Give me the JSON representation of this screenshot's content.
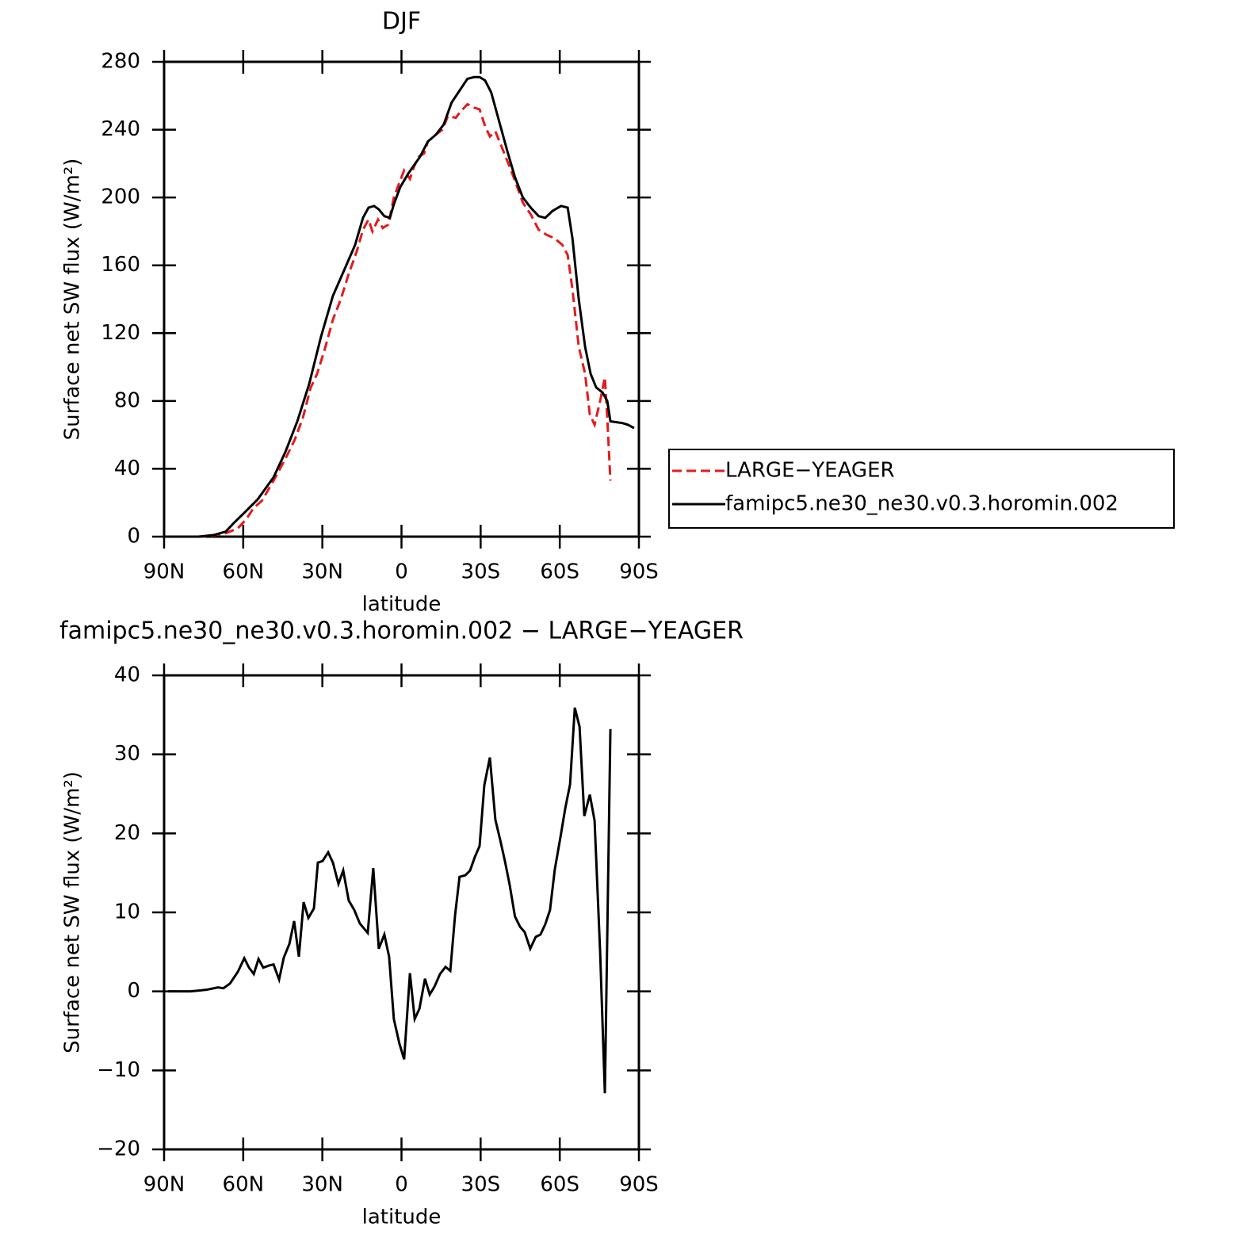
{
  "chart_data": [
    {
      "type": "line",
      "title": "DJF",
      "xlabel": "latitude",
      "ylabel": "Surface net SW flux (W/m²)",
      "xlim": [
        90,
        -90
      ],
      "xticks": [
        {
          "value": 90,
          "label": "90N"
        },
        {
          "value": 60,
          "label": "60N"
        },
        {
          "value": 30,
          "label": "30N"
        },
        0,
        {
          "value": -30,
          "label": "30S"
        },
        {
          "value": -60,
          "label": "60S"
        },
        {
          "value": -90,
          "label": "90S"
        }
      ],
      "ylim": [
        0,
        280
      ],
      "yticks": [
        0,
        40,
        80,
        120,
        160,
        200,
        240,
        280
      ],
      "legend": "outside right",
      "series": [
        {
          "name": "LARGE−YEAGER",
          "color": "#e41a1c",
          "dash": true,
          "x": [
            88.5,
            74,
            66.6,
            62,
            59,
            56,
            53,
            48.5,
            44,
            40.5,
            37.4,
            34.4,
            32,
            29,
            26,
            23,
            20,
            17,
            14.6,
            12.5,
            11,
            8.9,
            7.1,
            5,
            2.9,
            0.5,
            -1,
            -3.2,
            -4.7,
            -6.5,
            -8.6,
            -10,
            -13,
            -15.5,
            -17.6,
            -20.6,
            -22,
            -25,
            -27.5,
            -29.6,
            -31.7,
            -33.5,
            -35.6,
            -40,
            -43,
            -46,
            -49,
            -52,
            -55,
            -58,
            -61,
            -63,
            -64.8,
            -67.2,
            -69.6,
            -71.4,
            -73.2,
            -75.3,
            -77.1,
            -78,
            -79.2
          ],
          "values": [
            0,
            0,
            2,
            5,
            10,
            17,
            21,
            33,
            46,
            57,
            70,
            88,
            96,
            111,
            128,
            140,
            155,
            168,
            181,
            187,
            180,
            187,
            182,
            184,
            200,
            210,
            216,
            211,
            218,
            224,
            226,
            233,
            237,
            240,
            248,
            247,
            250,
            255,
            253,
            252,
            242,
            236,
            239,
            222,
            210,
            197,
            190,
            181,
            178,
            176,
            172,
            166,
            146,
            112,
            96,
            72,
            66,
            80,
            94,
            70,
            33
          ]
        },
        {
          "name": "famipc5.ne30_ne30.v0.3.horomin.002",
          "color": "#000000",
          "dash": false,
          "x": [
            88.5,
            77,
            71,
            66.6,
            63.6,
            59,
            54.5,
            48.5,
            44,
            39.5,
            35,
            30.5,
            26,
            21.5,
            17.6,
            14.6,
            12.5,
            10.4,
            8.6,
            6.5,
            4.4,
            2.9,
            0.5,
            -2.5,
            -7,
            -10,
            -13,
            -16,
            -19,
            -22,
            -25,
            -27.5,
            -29.6,
            -31.7,
            -34,
            -37,
            -40,
            -43,
            -46,
            -49,
            -52,
            -54.5,
            -57.2,
            -60.5,
            -63,
            -64.8,
            -67.2,
            -69.6,
            -71.7,
            -73.8,
            -76.2,
            -78,
            -79.2,
            -83.7,
            -85.8,
            -88.2
          ],
          "values": [
            0,
            0,
            1,
            3,
            8,
            15,
            22,
            35,
            50,
            68,
            90,
            118,
            142,
            158,
            172,
            188,
            194,
            195,
            193,
            189,
            188,
            196,
            206,
            214,
            224,
            233,
            237,
            243,
            256,
            263,
            270,
            271,
            271,
            269,
            262,
            245,
            228,
            212,
            200,
            194,
            189,
            188,
            192,
            195,
            194,
            176,
            140,
            112,
            96,
            88,
            85,
            80,
            68,
            67,
            66,
            64
          ]
        }
      ]
    },
    {
      "type": "line",
      "title": "famipc5.ne30_ne30.v0.3.horomin.002 − LARGE−YEAGER",
      "xlabel": "latitude",
      "ylabel": "Surface net SW flux (W/m²)",
      "xlim": [
        90,
        -90
      ],
      "xticks": [
        {
          "value": 90,
          "label": "90N"
        },
        {
          "value": 60,
          "label": "60N"
        },
        {
          "value": 30,
          "label": "30N"
        },
        0,
        {
          "value": -30,
          "label": "30S"
        },
        {
          "value": -60,
          "label": "60S"
        },
        {
          "value": -90,
          "label": "90S"
        }
      ],
      "ylim": [
        -20,
        40
      ],
      "yticks": [
        {
          "value": -20,
          "label": "−20"
        },
        {
          "value": -10,
          "label": "−10"
        },
        0,
        10,
        20,
        30,
        40
      ],
      "series": [
        {
          "color": "#000000",
          "dash": false,
          "x": [
            88.5,
            80,
            74,
            69.6,
            67.5,
            65,
            62,
            59.6,
            57.8,
            56,
            54.2,
            52.4,
            50,
            48.5,
            46.4,
            44.6,
            42.5,
            40.7,
            38.9,
            37.1,
            35.3,
            33.2,
            31.7,
            29.9,
            27.8,
            26,
            23.9,
            22.1,
            20,
            17.9,
            15.8,
            12.8,
            10.7,
            8.6,
            6.5,
            4.7,
            2.9,
            0.8,
            -1,
            -3.2,
            -5,
            -6.8,
            -8.9,
            -10.7,
            -12.5,
            -14.6,
            -16.7,
            -18.5,
            -20.3,
            -22,
            -24.2,
            -26,
            -27.8,
            -29.6,
            -31.4,
            -33.5,
            -35.6,
            -37.4,
            -39.2,
            -41,
            -43,
            -44.9,
            -46.7,
            -48.8,
            -50.9,
            -52.7,
            -54.5,
            -56.3,
            -58.1,
            -60.3,
            -62.1,
            -63.9,
            -65.7,
            -67.5,
            -69.3,
            -71.4,
            -73.2,
            -75.3,
            -77.1,
            -79.2
          ],
          "values": [
            0,
            0,
            0.2,
            0.5,
            0.4,
            1,
            2.5,
            4.2,
            3,
            2.2,
            4.1,
            3,
            3.3,
            3.4,
            1.5,
            4.3,
            6,
            8.9,
            4.4,
            11.3,
            9.3,
            10.5,
            16.3,
            16.5,
            17.6,
            16.3,
            13.6,
            15.3,
            11.5,
            10.3,
            8.6,
            7.4,
            15.6,
            5.4,
            7.2,
            4.4,
            -3.5,
            -6.6,
            -8.6,
            2.3,
            -3.5,
            -2.2,
            1.6,
            -0.4,
            0.6,
            2.2,
            3.1,
            2.6,
            9.6,
            14.5,
            14.7,
            15.3,
            17,
            18.4,
            26.1,
            29.6,
            21.7,
            19.2,
            16.5,
            13.5,
            9.5,
            8.2,
            7.5,
            5.4,
            6.9,
            7.2,
            8.5,
            10.3,
            15.4,
            19.6,
            23.2,
            26.2,
            35.9,
            33.5,
            22.2,
            24.9,
            21.6,
            5,
            -12.9,
            33.2
          ]
        }
      ]
    }
  ]
}
